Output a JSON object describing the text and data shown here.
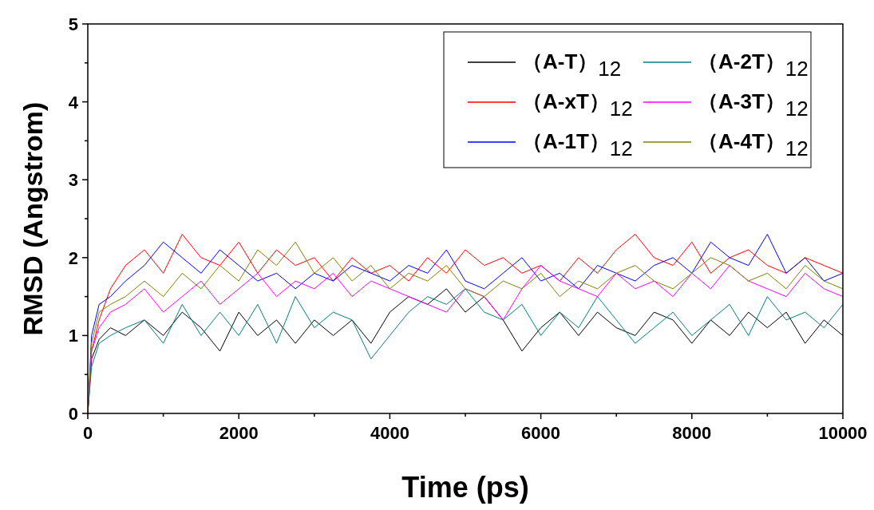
{
  "chart_data": {
    "type": "line",
    "xlabel": "Time (ps)",
    "ylabel": "RMSD (Angstrom)",
    "x": [
      0,
      50,
      150,
      300,
      500,
      750,
      1000,
      1250,
      1500,
      1750,
      2000,
      2250,
      2500,
      2750,
      3000,
      3250,
      3500,
      3750,
      4000,
      4250,
      4500,
      4750,
      5000,
      5250,
      5500,
      5750,
      6000,
      6250,
      6500,
      6750,
      7000,
      7250,
      7500,
      7750,
      8000,
      8250,
      8500,
      8750,
      9000,
      9250,
      9500,
      9750,
      10000
    ],
    "series": [
      {
        "name": "（A-T）$_{12}$",
        "color": "#000000",
        "values": [
          0,
          0.7,
          0.95,
          1.1,
          1.0,
          1.2,
          1.0,
          1.3,
          1.1,
          0.8,
          1.3,
          1.0,
          1.2,
          0.9,
          1.2,
          1.0,
          1.2,
          0.9,
          1.3,
          1.5,
          1.4,
          1.6,
          1.3,
          1.5,
          1.2,
          0.8,
          1.1,
          1.3,
          1.0,
          1.3,
          1.1,
          1.0,
          1.3,
          1.2,
          0.9,
          1.2,
          1.0,
          1.3,
          1.1,
          1.3,
          0.9,
          1.2,
          1.0
        ]
      },
      {
        "name": "（A-xT）$_{12}$",
        "color": "#ff0000",
        "values": [
          0,
          0.8,
          1.2,
          1.6,
          1.9,
          2.1,
          1.8,
          2.3,
          2.0,
          1.9,
          2.2,
          1.8,
          2.1,
          1.9,
          2.0,
          1.7,
          2.0,
          1.8,
          1.9,
          1.7,
          2.0,
          1.8,
          2.1,
          1.9,
          2.0,
          1.8,
          1.9,
          1.7,
          2.0,
          1.8,
          2.1,
          2.3,
          2.0,
          1.9,
          2.2,
          1.8,
          2.0,
          2.1,
          1.9,
          1.8,
          2.0,
          1.9,
          1.8
        ]
      },
      {
        "name": "（A-1T）$_{12}$",
        "color": "#0000ff",
        "values": [
          0,
          1.0,
          1.4,
          1.5,
          1.7,
          1.9,
          2.2,
          2.0,
          1.8,
          2.1,
          1.9,
          1.7,
          1.8,
          1.6,
          1.8,
          1.7,
          1.9,
          1.8,
          1.7,
          1.9,
          1.8,
          2.1,
          1.7,
          1.6,
          1.8,
          2.0,
          1.7,
          1.8,
          1.6,
          1.9,
          1.8,
          1.7,
          1.9,
          2.0,
          1.8,
          2.2,
          2.0,
          1.9,
          2.3,
          1.8,
          2.0,
          1.7,
          1.8
        ]
      },
      {
        "name": "（A-2T）$_{12}$",
        "color": "#008080",
        "values": [
          0,
          0.6,
          0.9,
          1.0,
          1.1,
          1.2,
          0.9,
          1.4,
          1.0,
          1.3,
          1.0,
          1.4,
          0.9,
          1.5,
          1.1,
          1.3,
          1.2,
          0.7,
          1.0,
          1.3,
          1.5,
          1.4,
          1.6,
          1.3,
          1.2,
          1.4,
          1.0,
          1.3,
          1.1,
          1.5,
          1.2,
          0.9,
          1.1,
          1.3,
          1.0,
          1.2,
          1.4,
          1.0,
          1.5,
          1.2,
          1.3,
          1.1,
          1.4
        ]
      },
      {
        "name": "（A-3T）$_{12}$",
        "color": "#ff00ff",
        "values": [
          0,
          0.8,
          1.1,
          1.3,
          1.4,
          1.6,
          1.3,
          1.5,
          1.7,
          1.4,
          1.6,
          1.8,
          1.5,
          1.7,
          1.6,
          1.8,
          1.5,
          1.7,
          1.6,
          1.5,
          1.4,
          1.3,
          1.6,
          1.5,
          1.2,
          1.6,
          1.9,
          1.7,
          1.6,
          1.5,
          1.8,
          1.6,
          1.7,
          1.5,
          1.8,
          1.6,
          1.9,
          1.7,
          1.6,
          1.5,
          1.8,
          1.6,
          1.5
        ]
      },
      {
        "name": "（A-4T）$_{12}$",
        "color": "#808000",
        "values": [
          0,
          0.9,
          1.3,
          1.4,
          1.5,
          1.7,
          1.5,
          1.8,
          1.6,
          1.9,
          1.7,
          2.1,
          1.9,
          2.2,
          1.8,
          2.0,
          1.7,
          1.9,
          1.6,
          1.8,
          1.7,
          1.9,
          1.6,
          1.5,
          1.7,
          1.6,
          1.8,
          1.5,
          1.7,
          1.6,
          1.8,
          1.9,
          1.7,
          1.6,
          1.8,
          2.0,
          1.9,
          1.7,
          1.8,
          1.6,
          1.9,
          1.7,
          1.6
        ]
      }
    ],
    "xlim": [
      0,
      10000
    ],
    "xticks": [
      0,
      {
        "value": 1000,
        "label": null
      },
      2000,
      {
        "value": 3000,
        "label": null
      },
      4000,
      {
        "value": 5000,
        "label": null
      },
      6000,
      {
        "value": 7000,
        "label": null
      },
      8000,
      {
        "value": 9000,
        "label": null
      },
      10000
    ],
    "ylim": [
      0,
      5
    ],
    "yticks": [
      0,
      {
        "value": 0.5,
        "label": null
      },
      1,
      {
        "value": 1.5,
        "label": null
      },
      2,
      {
        "value": 2.5,
        "label": null
      },
      3,
      {
        "value": 3.5,
        "label": null
      },
      4,
      {
        "value": 4.5,
        "label": null
      },
      5
    ],
    "legend": "top right",
    "marker": "none",
    "line_style": "solid"
  }
}
